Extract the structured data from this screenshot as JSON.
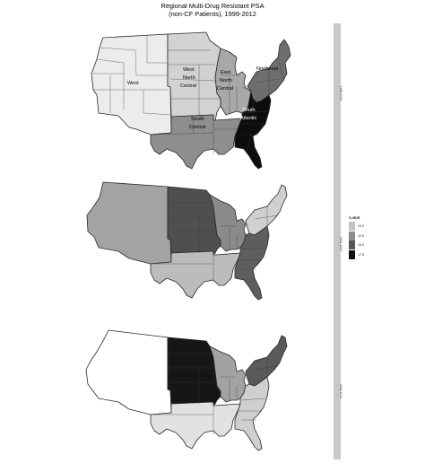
{
  "title": {
    "line1": "Regional Multi-Drug Resistant PSA",
    "line2": "(non-CF Patients), 1999-2012"
  },
  "legend": {
    "title": "% MDR",
    "items": [
      {
        "label": "10.0",
        "color": "#c4c4c4"
      },
      {
        "label": "12.5",
        "color": "#8e8e8e"
      },
      {
        "label": "15.0",
        "color": "#575757"
      },
      {
        "label": "17.5",
        "color": "#111111"
      }
    ]
  },
  "panels": [
    {
      "period": "1999-2003",
      "labels": {
        "west": "West",
        "wnc1": "West",
        "wnc2": "North",
        "wnc3": "Central",
        "enc1": "East",
        "enc2": "North",
        "enc3": "Central",
        "ne": "Northeast",
        "sa1": "South",
        "sa2": "Atlantic",
        "sc1": "South",
        "sc2": "Central"
      },
      "regions": {
        "west": "#ececec",
        "wnc": "#d2d2d2",
        "sc": "#8e8e8e",
        "enc": "#a8a8a8",
        "ne": "#6e6e6e",
        "sa": "#0d0d0d"
      }
    },
    {
      "period": "2004-2007",
      "regions": {
        "west": "#a3a3a3",
        "wnc": "#4f4f4f",
        "sc": "#bcbcbc",
        "enc": "#8a8a8a",
        "ne": "#d0d0d0",
        "sa": "#5e5e5e"
      }
    },
    {
      "period": "2008-2012",
      "regions": {
        "west": "#ffffff",
        "wnc": "#161616",
        "sc": "#e2e2e2",
        "enc": "#a2a2a2",
        "ne": "#5a5a5a",
        "sa": "#cfcfcf"
      }
    }
  ]
}
